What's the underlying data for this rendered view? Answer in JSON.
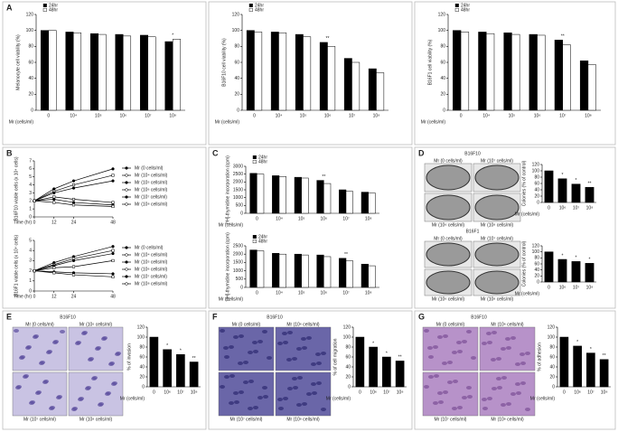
{
  "panel_labels": [
    "A",
    "B",
    "C",
    "D",
    "E",
    "F",
    "G"
  ],
  "image_panels": [
    {
      "title": "B16F10",
      "captions": [
        "Mr (0 cells/ml)",
        "Mr (10⁷ cells/ml)",
        "Mr (10⁶ cells/ml)",
        "Mr (10⁸ cells/ml)"
      ]
    },
    {
      "title": "B16F1",
      "captions": [
        "Mr (0 cells/ml)",
        "Mr (10⁷ cells/ml)",
        "Mr (10⁶ cells/ml)",
        "Mr (10⁸ cells/ml)"
      ]
    },
    {
      "title": "B16F10",
      "captions": [
        "Mr (0 cells/ml)",
        "Mr (10⁶ cells/ml)",
        "Mr (10⁷ cells/ml)",
        "Mr (10⁸ cells/ml)"
      ]
    },
    {
      "title": "B16F10",
      "captions": [
        "Mr (0 cells/ml)",
        "Mr (10⁶ cells/ml)",
        "Mr (10⁷ cells/ml)",
        "Mr (10⁸ cells/ml)"
      ]
    },
    {
      "title": "B16F10",
      "captions": [
        "Mr (0 cells/ml)",
        "Mr (10⁶ cells/ml)",
        "Mr (10⁷ cells/ml)",
        "Mr (10⁸ cells/ml)"
      ]
    }
  ],
  "chart_data": [
    {
      "type": "bar",
      "y_label": "Melanocyte cell viability (%)",
      "x_label": "Mr (cells/ml)",
      "categories": [
        "0",
        "10⁴",
        "10⁵",
        "10⁶",
        "10⁷",
        "10⁸"
      ],
      "series": [
        {
          "name": "24hr",
          "color": "#000000",
          "values": [
            100,
            98,
            96,
            95,
            94,
            86
          ]
        },
        {
          "name": "48hr",
          "color": "#ffffff",
          "values": [
            100,
            97,
            95,
            93,
            92,
            89
          ]
        }
      ],
      "sig": [
        null,
        null,
        null,
        null,
        null,
        "*"
      ],
      "ylim": [
        0,
        120
      ],
      "yticks": [
        0,
        20,
        40,
        60,
        80,
        100,
        120
      ]
    },
    {
      "type": "bar",
      "y_label": "B16F10 cell viability (%)",
      "x_label": "Mr (cells/ml)",
      "categories": [
        "0",
        "10⁴",
        "10⁵",
        "10⁶",
        "10⁷",
        "10⁸"
      ],
      "series": [
        {
          "name": "24hr",
          "color": "#000000",
          "values": [
            100,
            98,
            95,
            85,
            65,
            52
          ]
        },
        {
          "name": "48hr",
          "color": "#ffffff",
          "values": [
            98,
            97,
            92,
            80,
            60,
            47
          ]
        }
      ],
      "sig": [
        null,
        null,
        null,
        "**",
        null,
        null
      ],
      "ylim": [
        0,
        120
      ],
      "yticks": [
        0,
        20,
        40,
        60,
        80,
        100,
        120
      ]
    },
    {
      "type": "bar",
      "y_label": "B16F1 cell viability (%)",
      "x_label": "Mr (cells/ml)",
      "categories": [
        "0",
        "10⁴",
        "10⁵",
        "10⁶",
        "10⁷",
        "10⁸"
      ],
      "series": [
        {
          "name": "24hr",
          "color": "#000000",
          "values": [
            100,
            98,
            97,
            95,
            88,
            62
          ]
        },
        {
          "name": "48hr",
          "color": "#ffffff",
          "values": [
            98,
            96,
            95,
            94,
            82,
            57
          ]
        }
      ],
      "sig": [
        null,
        null,
        null,
        null,
        "**",
        null
      ],
      "ylim": [
        0,
        120
      ],
      "yticks": [
        0,
        20,
        40,
        60,
        80,
        100,
        120
      ]
    },
    {
      "type": "line",
      "y_label": "B16F10 viable cells (x 10⁴ cells)",
      "x_label": "Time (hr)",
      "x": [
        0,
        12,
        24,
        48
      ],
      "xlim": [
        0,
        48
      ],
      "xticks": [
        0,
        12,
        24,
        48
      ],
      "series": [
        {
          "name": "Mr (0 cells/ml)",
          "color": "#000000",
          "values": [
            2,
            3.5,
            4.5,
            6
          ]
        },
        {
          "name": "Mr (10⁴ cells/ml)",
          "color": "#000000",
          "values": [
            2,
            3.2,
            4,
            5.2
          ]
        },
        {
          "name": "Mr (10⁵ cells/ml)",
          "color": "#000000",
          "values": [
            2,
            3,
            3.6,
            4.5
          ]
        },
        {
          "name": "Mr (10⁶ cells/ml)",
          "color": "#000000",
          "values": [
            2,
            2.5,
            2.2,
            1.8
          ]
        },
        {
          "name": "Mr (10⁷ cells/ml)",
          "color": "#000000",
          "values": [
            2,
            2.2,
            1.8,
            1.5
          ]
        },
        {
          "name": "Mr (10⁸ cells/ml)",
          "color": "#000000",
          "values": [
            2,
            1.8,
            1.5,
            1.3
          ]
        }
      ],
      "ylim": [
        0,
        7
      ],
      "yticks": [
        0,
        1,
        2,
        3,
        4,
        5,
        6,
        7
      ]
    },
    {
      "type": "line",
      "y_label": "B16F1 viable cells (x 10⁴ cells)",
      "x_label": "Time (hr)",
      "x": [
        0,
        12,
        24,
        48
      ],
      "xlim": [
        0,
        48
      ],
      "xticks": [
        0,
        12,
        24,
        48
      ],
      "series": [
        {
          "name": "Mr (0 cells/ml)",
          "color": "#000000",
          "values": [
            2,
            2.8,
            3.4,
            4.4
          ]
        },
        {
          "name": "Mr (10⁴ cells/ml)",
          "color": "#000000",
          "values": [
            2,
            2.6,
            3.2,
            4
          ]
        },
        {
          "name": "Mr (10⁵ cells/ml)",
          "color": "#000000",
          "values": [
            2,
            2.5,
            3,
            3.7
          ]
        },
        {
          "name": "Mr (10⁶ cells/ml)",
          "color": "#000000",
          "values": [
            2,
            2.3,
            2.4,
            3
          ]
        },
        {
          "name": "Mr (10⁷ cells/ml)",
          "color": "#000000",
          "values": [
            2,
            1.9,
            1.8,
            1.7
          ]
        },
        {
          "name": "Mr (10⁸ cells/ml)",
          "color": "#000000",
          "values": [
            2,
            1.8,
            1.6,
            1.4
          ]
        }
      ],
      "ylim": [
        0,
        5
      ],
      "yticks": [
        0,
        1,
        2,
        3,
        4,
        5
      ]
    },
    {
      "type": "bar",
      "y_label": "[³H]-thymidine incorporation (cpm)",
      "x_label": "Mr (cells/ml)",
      "categories": [
        "0",
        "10⁴",
        "10⁵",
        "10⁶",
        "10⁷",
        "10⁸"
      ],
      "series": [
        {
          "name": "24hr",
          "color": "#000000",
          "values": [
            2550,
            2400,
            2300,
            2100,
            1500,
            1350
          ]
        },
        {
          "name": "48hr",
          "color": "#ffffff",
          "values": [
            2500,
            2350,
            2250,
            1900,
            1400,
            1300
          ]
        }
      ],
      "sig": [
        null,
        null,
        null,
        "**",
        null,
        null
      ],
      "ylim": [
        0,
        3000
      ],
      "yticks": [
        0,
        500,
        1000,
        1500,
        2000,
        2500,
        3000
      ]
    },
    {
      "type": "bar",
      "y_label": "[³H]-thymidine incorporation (cpm)",
      "x_label": "Mr (cells/ml)",
      "categories": [
        "0",
        "10⁴",
        "10⁵",
        "10⁶",
        "10⁷",
        "10⁸"
      ],
      "series": [
        {
          "name": "24hr",
          "color": "#000000",
          "values": [
            2250,
            2050,
            2000,
            1950,
            1750,
            1400
          ]
        },
        {
          "name": "48hr",
          "color": "#ffffff",
          "values": [
            2200,
            2000,
            1950,
            1850,
            1600,
            1300
          ]
        }
      ],
      "sig": [
        null,
        null,
        null,
        null,
        "**",
        null
      ],
      "ylim": [
        0,
        2500
      ],
      "yticks": [
        0,
        500,
        1000,
        1500,
        2000,
        2500
      ]
    },
    {
      "type": "bar",
      "y_label": "Colonies (% of control)",
      "x_label": "Mr (cells/ml)",
      "categories": [
        "0",
        "10⁶",
        "10⁷",
        "10⁸"
      ],
      "values": [
        100,
        75,
        58,
        48
      ],
      "color": "#000000",
      "sig": [
        null,
        "*",
        "*",
        "**"
      ],
      "ylim": [
        0,
        120
      ],
      "yticks": [
        0,
        20,
        40,
        60,
        80,
        100,
        120
      ]
    },
    {
      "type": "bar",
      "y_label": "Colonies (% of control)",
      "x_label": "Mr (cells/ml)",
      "categories": [
        "0",
        "10⁶",
        "10⁷",
        "10⁸"
      ],
      "values": [
        100,
        75,
        68,
        62
      ],
      "color": "#000000",
      "sig": [
        null,
        "*",
        "*",
        "*"
      ],
      "ylim": [
        0,
        120
      ],
      "yticks": [
        0,
        20,
        40,
        60,
        80,
        100,
        120
      ]
    },
    {
      "type": "bar",
      "y_label": "% of invasion",
      "x_label": "Mr (cells/ml)",
      "categories": [
        "0",
        "10⁶",
        "10⁷",
        "10⁸"
      ],
      "values": [
        100,
        75,
        65,
        50
      ],
      "color": "#000000",
      "sig": [
        null,
        "*",
        "*",
        "**"
      ],
      "ylim": [
        0,
        120
      ],
      "yticks": [
        0,
        20,
        40,
        60,
        80,
        100,
        120
      ]
    },
    {
      "type": "bar",
      "y_label": "% of cell migration",
      "x_label": "Mr (cells/ml)",
      "categories": [
        "0",
        "10⁶",
        "10⁷",
        "10⁸"
      ],
      "values": [
        100,
        80,
        60,
        52
      ],
      "color": "#000000",
      "sig": [
        null,
        "*",
        "*",
        "**"
      ],
      "ylim": [
        0,
        120
      ],
      "yticks": [
        0,
        20,
        40,
        60,
        80,
        100,
        120
      ]
    },
    {
      "type": "bar",
      "y_label": "% of adhesion",
      "x_label": "Mr (cells/ml)",
      "categories": [
        "0",
        "10⁶",
        "10⁷",
        "10⁸"
      ],
      "values": [
        100,
        82,
        68,
        55
      ],
      "color": "#000000",
      "sig": [
        null,
        "*",
        "*",
        "**"
      ],
      "ylim": [
        0,
        120
      ],
      "yticks": [
        0,
        20,
        40,
        60,
        80,
        100,
        120
      ]
    }
  ]
}
